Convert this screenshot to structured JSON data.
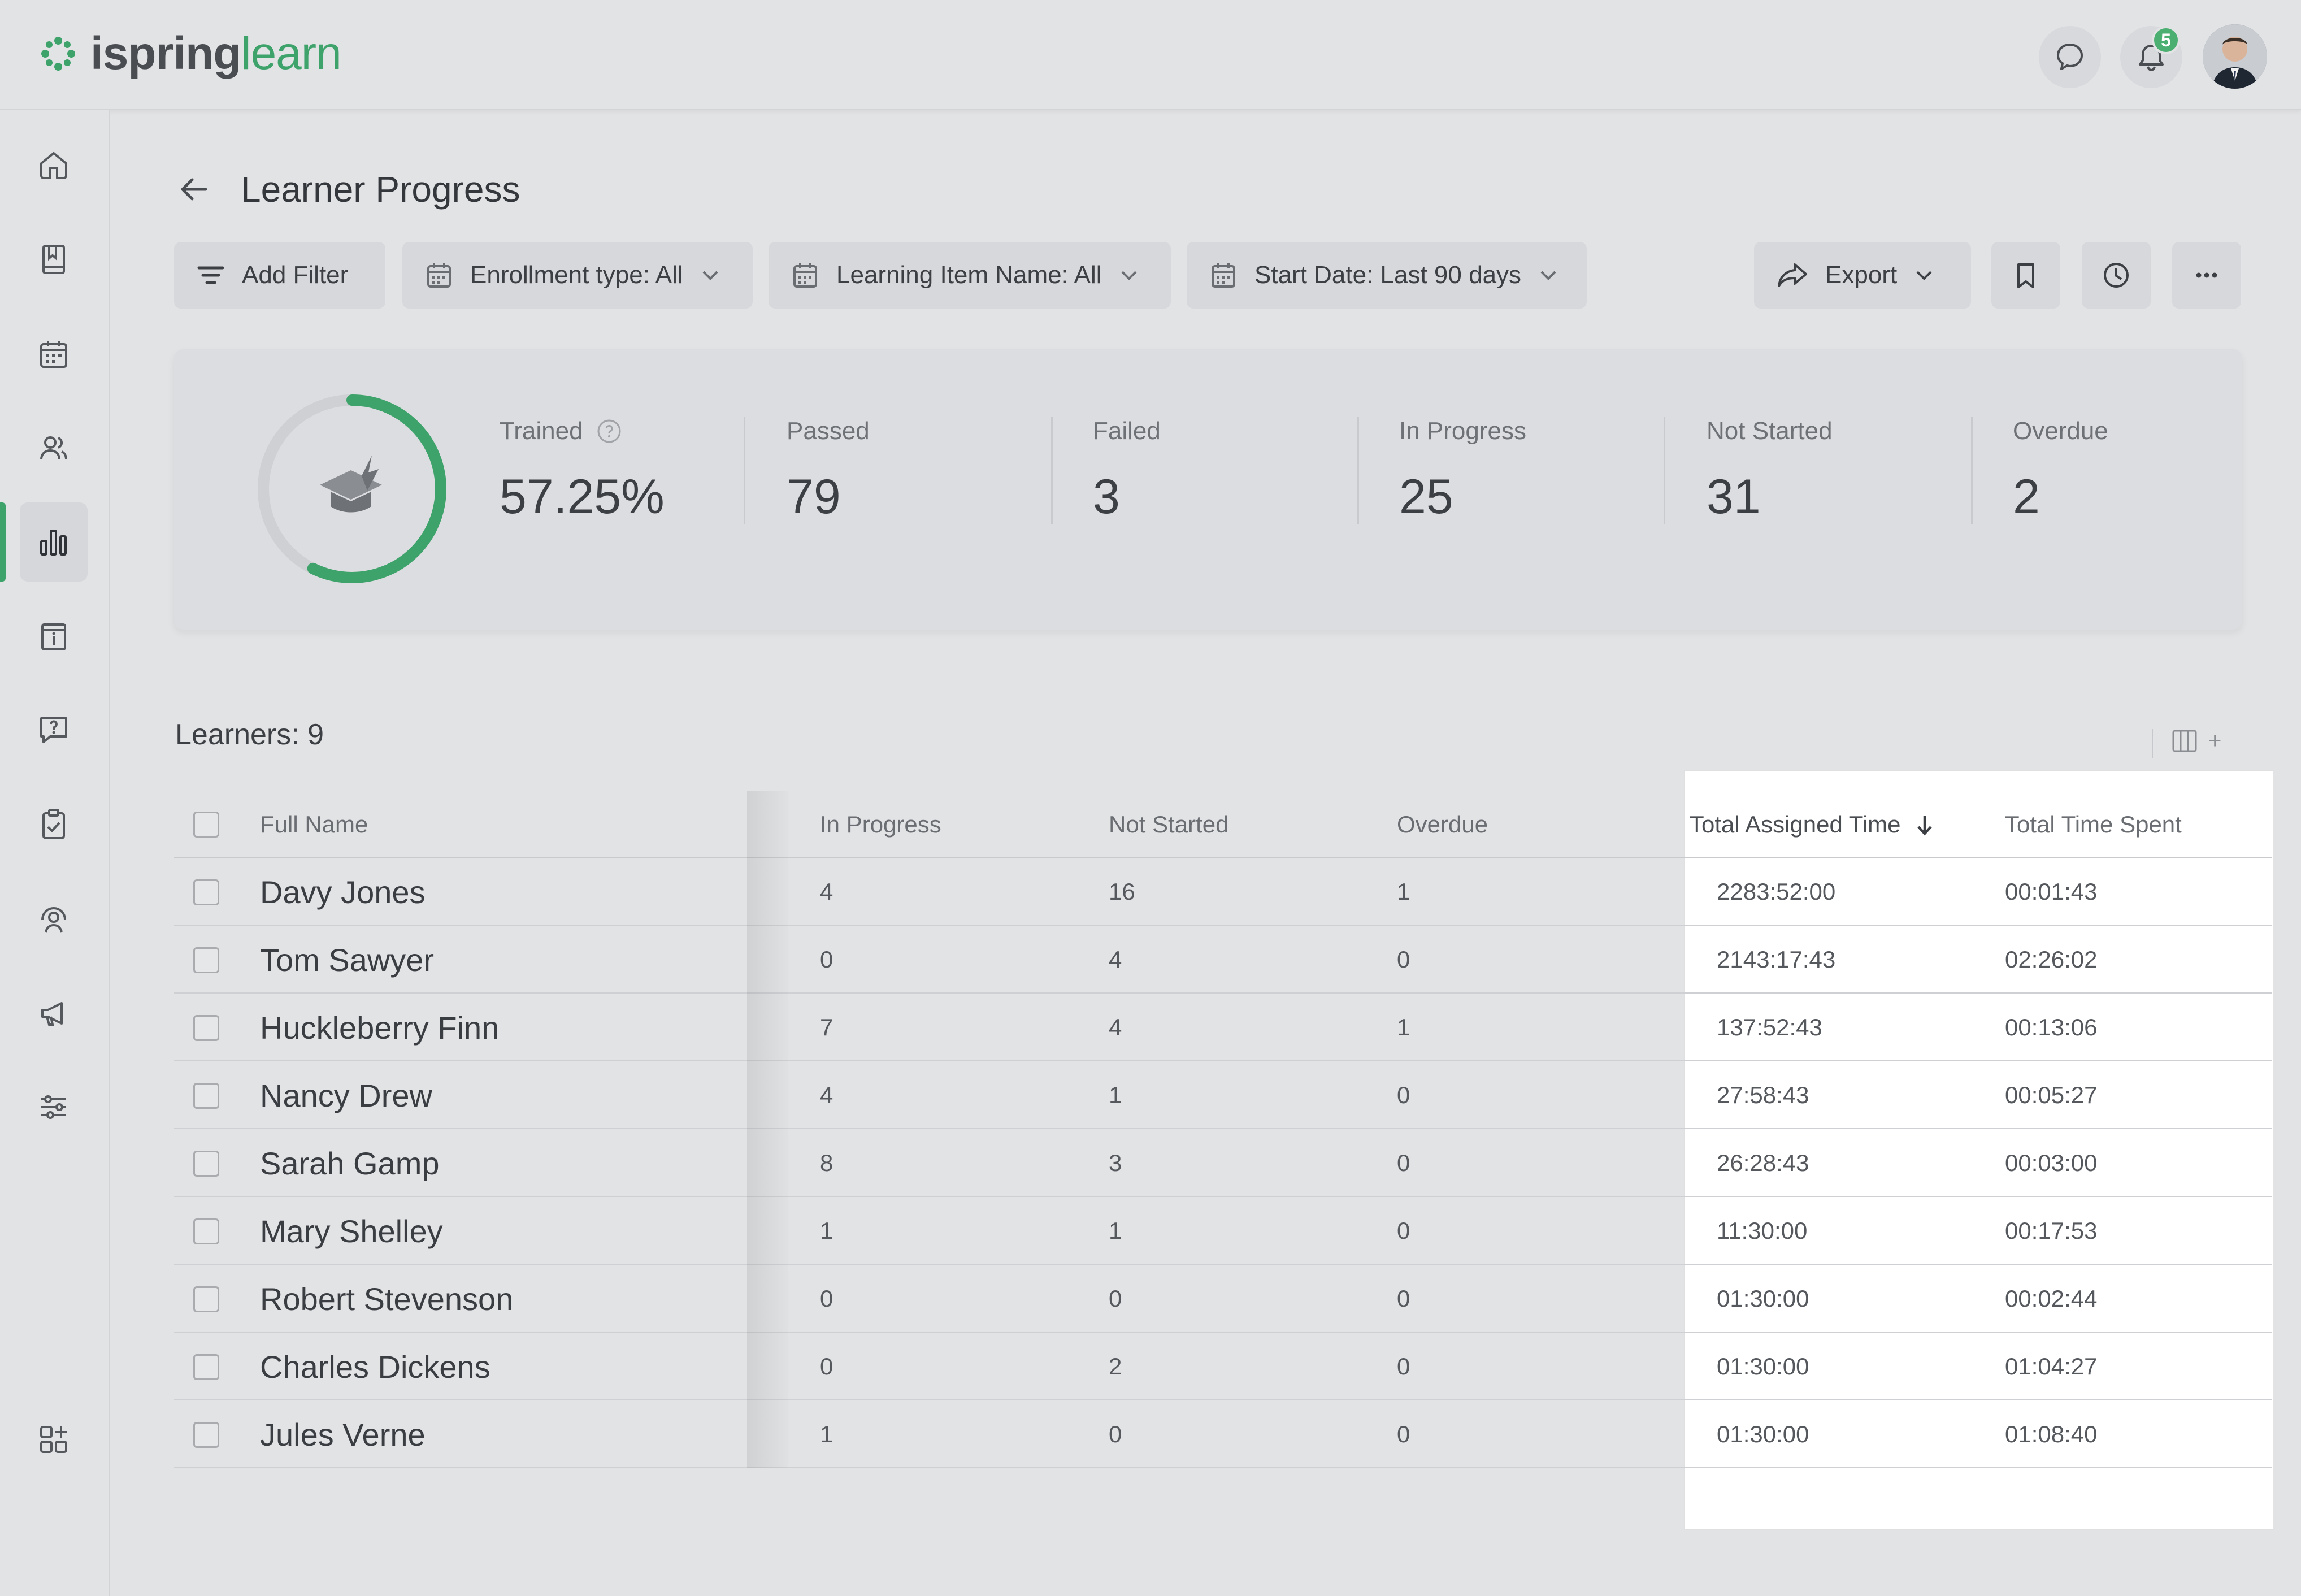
{
  "app": {
    "logo_primary": "ispring",
    "logo_secondary": "learn",
    "notification_count": "5",
    "accent_color": "#3ea36b"
  },
  "sidebar": {
    "items": [
      {
        "icon": "home-icon"
      },
      {
        "icon": "book-icon"
      },
      {
        "icon": "calendar-icon"
      },
      {
        "icon": "users-icon"
      },
      {
        "icon": "reports-icon",
        "active": true
      },
      {
        "icon": "info-icon"
      },
      {
        "icon": "question-icon"
      },
      {
        "icon": "clipboard-check-icon"
      },
      {
        "icon": "headset-icon"
      },
      {
        "icon": "megaphone-icon"
      },
      {
        "icon": "sliders-icon"
      },
      {
        "icon": "add-widget-icon"
      }
    ]
  },
  "page": {
    "title": "Learner Progress"
  },
  "toolbar": {
    "add_filter": "Add Filter",
    "enrollment": "Enrollment type: All",
    "learning_item": "Learning Item Name: All",
    "start_date": "Start Date: Last 90 days",
    "export": "Export"
  },
  "summary": {
    "trained_label": "Trained",
    "trained_value": "57.25%",
    "trained_fraction": 0.5725,
    "stats": [
      {
        "label": "Passed",
        "value": "79"
      },
      {
        "label": "Failed",
        "value": "3"
      },
      {
        "label": "In Progress",
        "value": "25"
      },
      {
        "label": "Not Started",
        "value": "31"
      },
      {
        "label": "Overdue",
        "value": "2"
      }
    ]
  },
  "learners": {
    "count_label": "Learners: 9",
    "columns": {
      "full_name": "Full Name",
      "in_progress": "In Progress",
      "not_started": "Not Started",
      "overdue": "Overdue",
      "total_assigned_time": "Total Assigned Time",
      "total_time_spent": "Total Time Spent"
    },
    "rows": [
      {
        "name": "Davy Jones",
        "in_progress": "4",
        "not_started": "16",
        "overdue": "1",
        "assigned": "2283:52:00",
        "spent": "00:01:43"
      },
      {
        "name": "Tom Sawyer",
        "in_progress": "0",
        "not_started": "4",
        "overdue": "0",
        "assigned": "2143:17:43",
        "spent": "02:26:02"
      },
      {
        "name": "Huckleberry Finn",
        "in_progress": "7",
        "not_started": "4",
        "overdue": "1",
        "assigned": "137:52:43",
        "spent": "00:13:06"
      },
      {
        "name": "Nancy Drew",
        "in_progress": "4",
        "not_started": "1",
        "overdue": "0",
        "assigned": "27:58:43",
        "spent": "00:05:27"
      },
      {
        "name": "Sarah Gamp",
        "in_progress": "8",
        "not_started": "3",
        "overdue": "0",
        "assigned": "26:28:43",
        "spent": "00:03:00"
      },
      {
        "name": "Mary Shelley",
        "in_progress": "1",
        "not_started": "1",
        "overdue": "0",
        "assigned": "11:30:00",
        "spent": "00:17:53"
      },
      {
        "name": "Robert Stevenson",
        "in_progress": "0",
        "not_started": "0",
        "overdue": "0",
        "assigned": "01:30:00",
        "spent": "00:02:44"
      },
      {
        "name": "Charles Dickens",
        "in_progress": "0",
        "not_started": "2",
        "overdue": "0",
        "assigned": "01:30:00",
        "spent": "01:04:27"
      },
      {
        "name": "Jules Verne",
        "in_progress": "1",
        "not_started": "0",
        "overdue": "0",
        "assigned": "01:30:00",
        "spent": "01:08:40"
      }
    ]
  }
}
